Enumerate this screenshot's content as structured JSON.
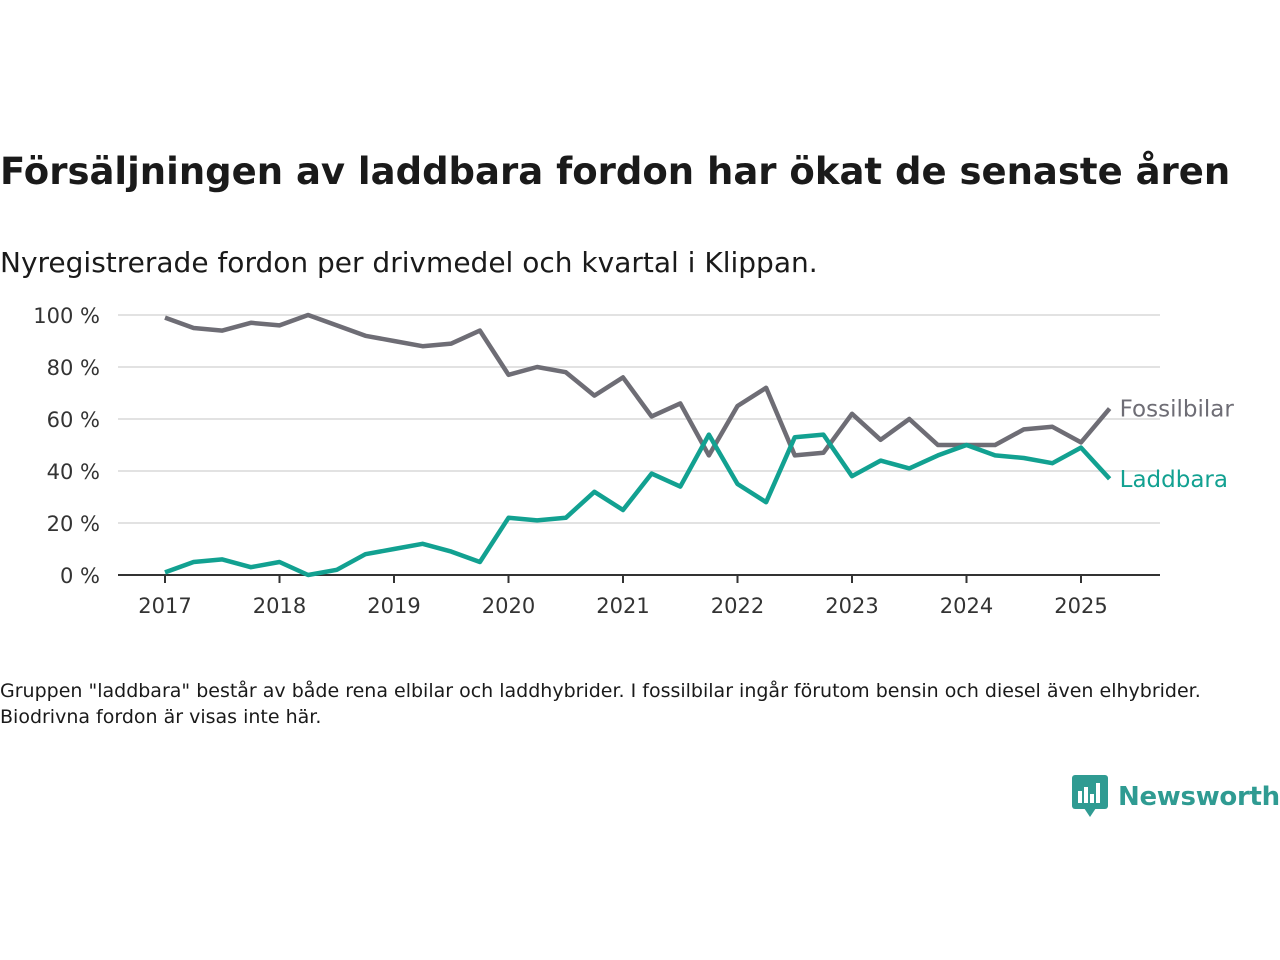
{
  "title": "Försäljningen av laddbara fordon har ökat de senaste åren",
  "subtitle": "Nyregistrerade fordon per drivmedel och kvartal i Klippan.",
  "note": "Gruppen \"laddbara\" består av både rena elbilar och laddhybrider. I fossilbilar ingår förutom bensin och diesel även elhybrider. Biodrivna fordon är visas inte här.",
  "brand": {
    "name": "Newsworthy",
    "icon": "newsworthy-logo-icon",
    "color": "#2f9b92"
  },
  "chart_data": {
    "type": "line",
    "ylim": [
      0,
      100
    ],
    "yticks": [
      0,
      20,
      40,
      60,
      80,
      100
    ],
    "ytick_labels": [
      "0 %",
      "20 %",
      "40 %",
      "60 %",
      "80 %",
      "100 %"
    ],
    "xlim": [
      2017.0,
      2025.25
    ],
    "xticks": [
      2017,
      2018,
      2019,
      2020,
      2021,
      2022,
      2023,
      2024,
      2025
    ],
    "xtick_labels": [
      "2017",
      "2018",
      "2019",
      "2020",
      "2021",
      "2022",
      "2023",
      "2024",
      "2025"
    ],
    "grid": true,
    "legend": "line-end labels (right)",
    "x": [
      "2017 K1",
      "2017 K2",
      "2017 K3",
      "2017 K4",
      "2018 K1",
      "2018 K2",
      "2018 K3",
      "2018 K4",
      "2019 K1",
      "2019 K2",
      "2019 K3",
      "2019 K4",
      "2020 K1",
      "2020 K2",
      "2020 K3",
      "2020 K4",
      "2021 K1",
      "2021 K2",
      "2021 K3",
      "2021 K4",
      "2022 K1",
      "2022 K2",
      "2022 K3",
      "2022 K4",
      "2023 K1",
      "2023 K2",
      "2023 K3",
      "2023 K4",
      "2024 K1",
      "2024 K2",
      "2024 K3",
      "2024 K4",
      "2025 K1",
      "2025 K2"
    ],
    "series": [
      {
        "name": "Fossilbilar",
        "color": "#6e6d75",
        "values": [
          99,
          95,
          94,
          97,
          96,
          100,
          96,
          92,
          90,
          88,
          89,
          94,
          77,
          80,
          78,
          69,
          76,
          61,
          66,
          46,
          65,
          72,
          46,
          47,
          62,
          52,
          60,
          50,
          50,
          50,
          56,
          57,
          51,
          64
        ]
      },
      {
        "name": "Laddbara",
        "color": "#12a191",
        "values": [
          1,
          5,
          6,
          3,
          5,
          0,
          2,
          8,
          10,
          12,
          9,
          5,
          22,
          21,
          22,
          32,
          25,
          39,
          34,
          54,
          35,
          28,
          53,
          54,
          38,
          44,
          41,
          46,
          50,
          46,
          45,
          43,
          49,
          37
        ]
      }
    ]
  }
}
